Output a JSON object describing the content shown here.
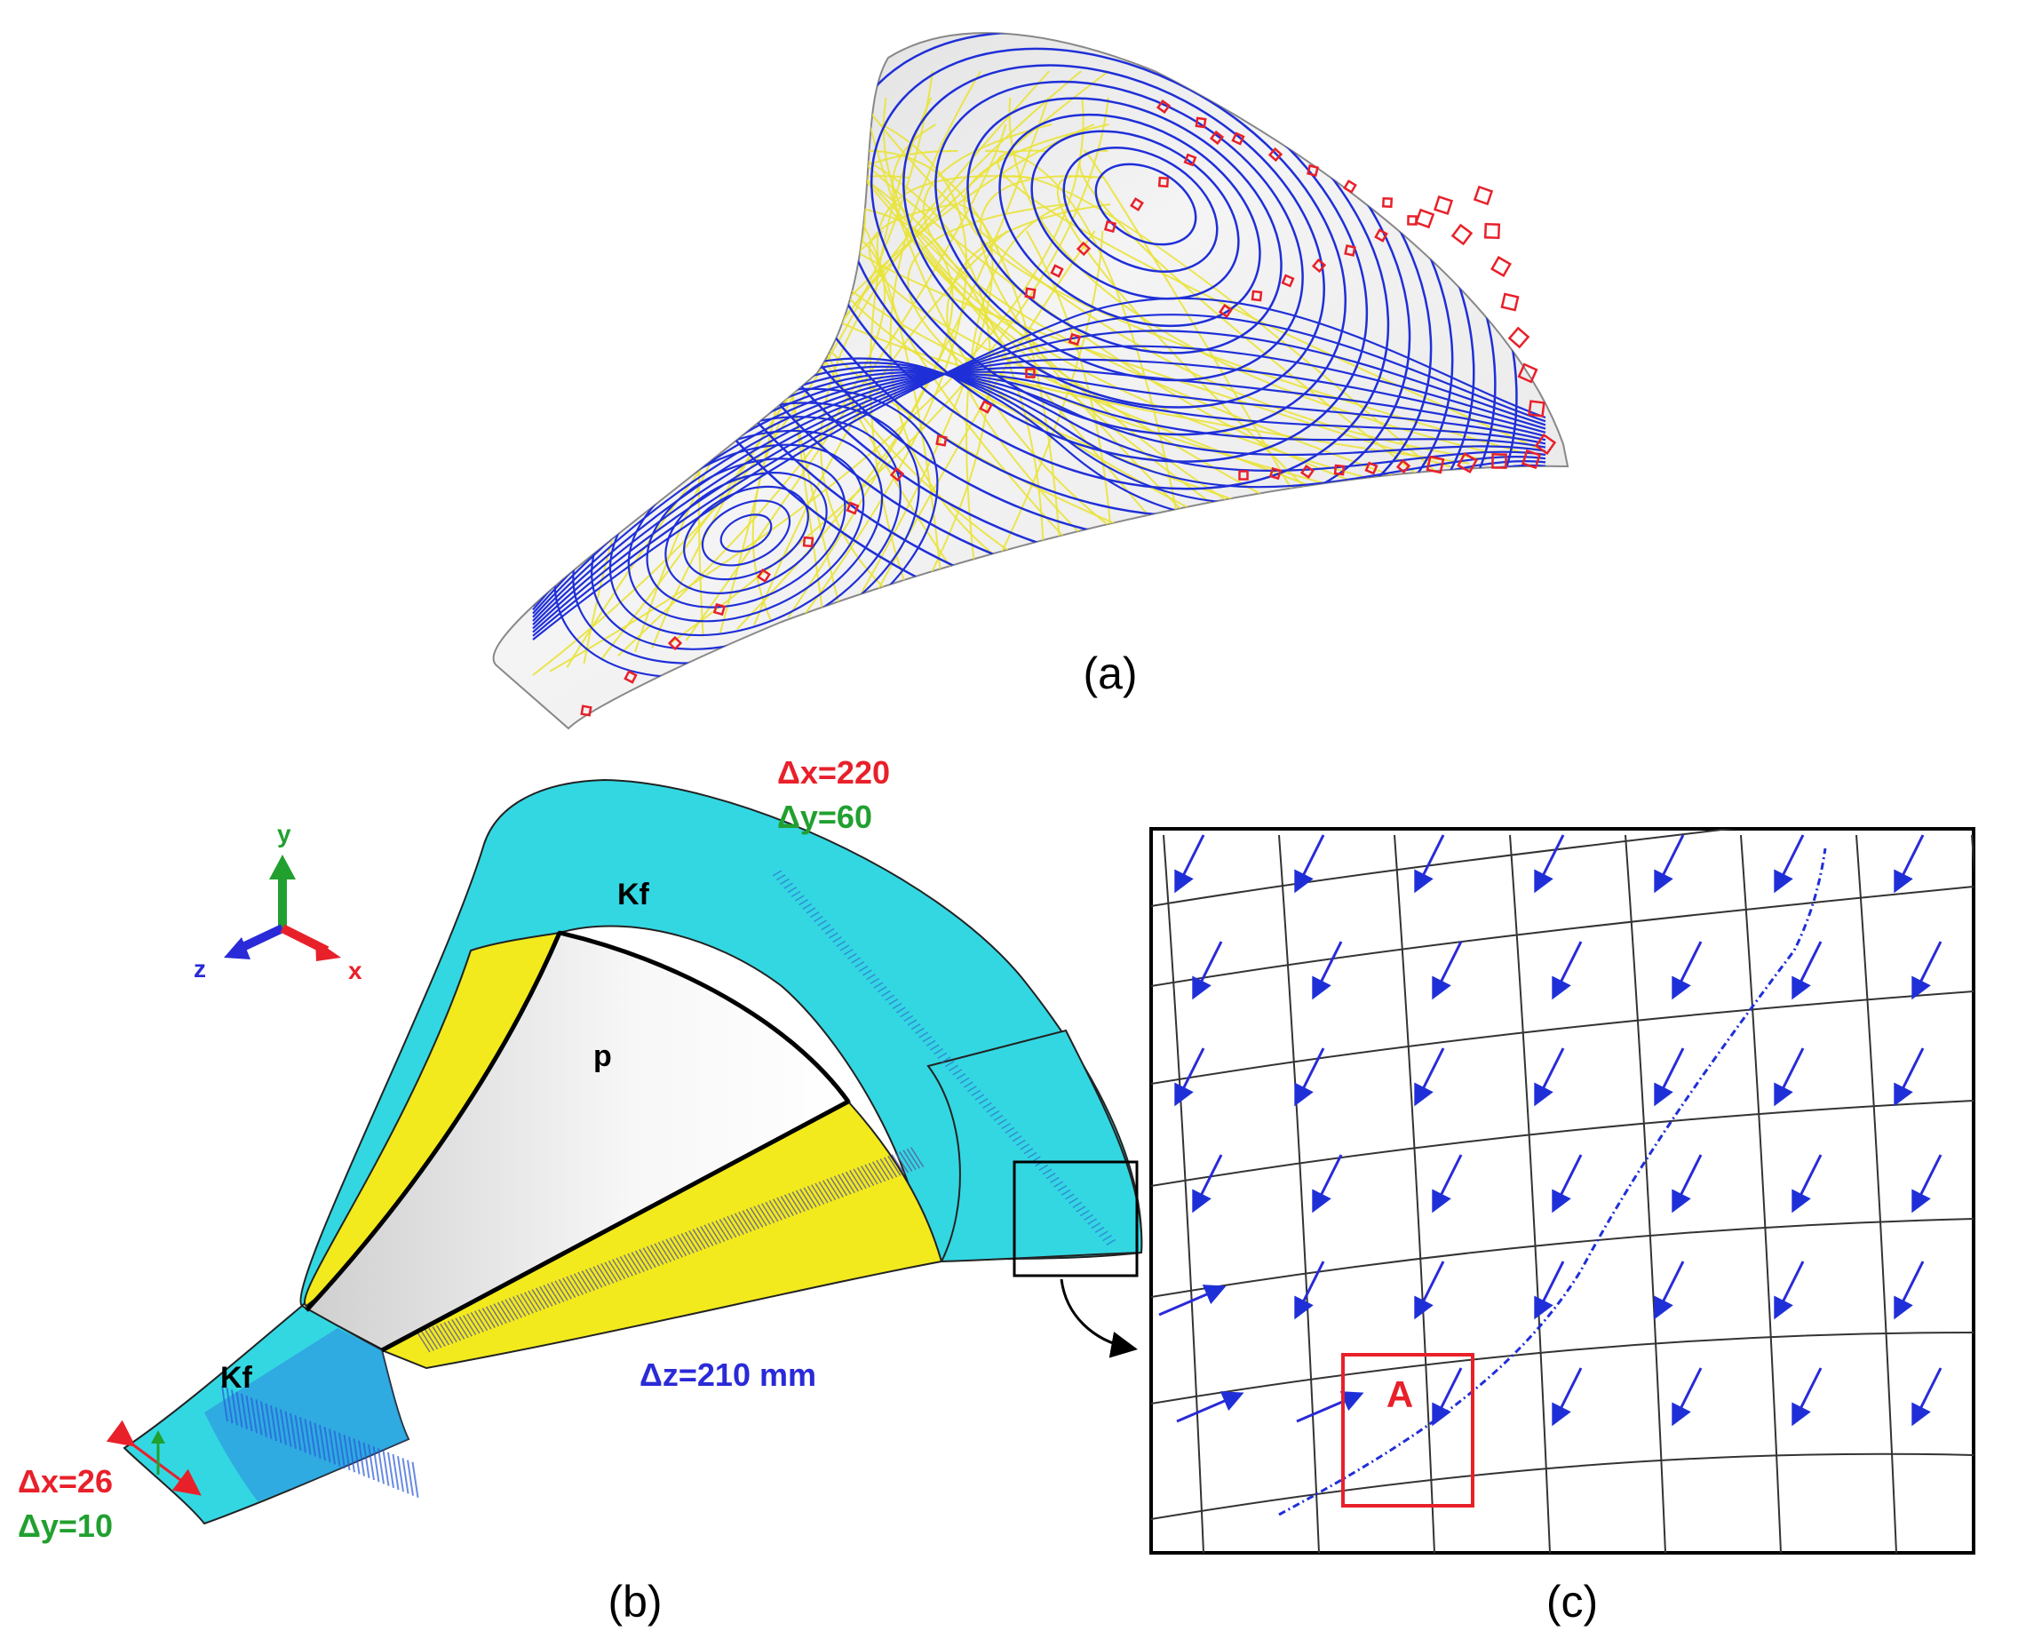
{
  "panels": {
    "a": {
      "caption": "(a)"
    },
    "b": {
      "caption": "(b)",
      "top_dx": "Δx=220",
      "top_dy": "Δy=60",
      "dz": "Δz=210 mm",
      "bottom_dx": "Δx=26",
      "bottom_dy": "Δy=10",
      "label_kf_top": "Kf",
      "label_kf_bottom": "Kf",
      "label_p": "p",
      "axes": {
        "x": "x",
        "y": "y",
        "z": "z"
      }
    },
    "c": {
      "caption": "(c)",
      "box_label": "A"
    }
  },
  "colors": {
    "red": "#e8202a",
    "green": "#21a030",
    "blue": "#2a2ad8",
    "cyan": "#33d7e2",
    "yellow": "#f2ea1d",
    "streamline_blue": "#1f2fd8",
    "streamline_yellow": "#e9e33a"
  }
}
